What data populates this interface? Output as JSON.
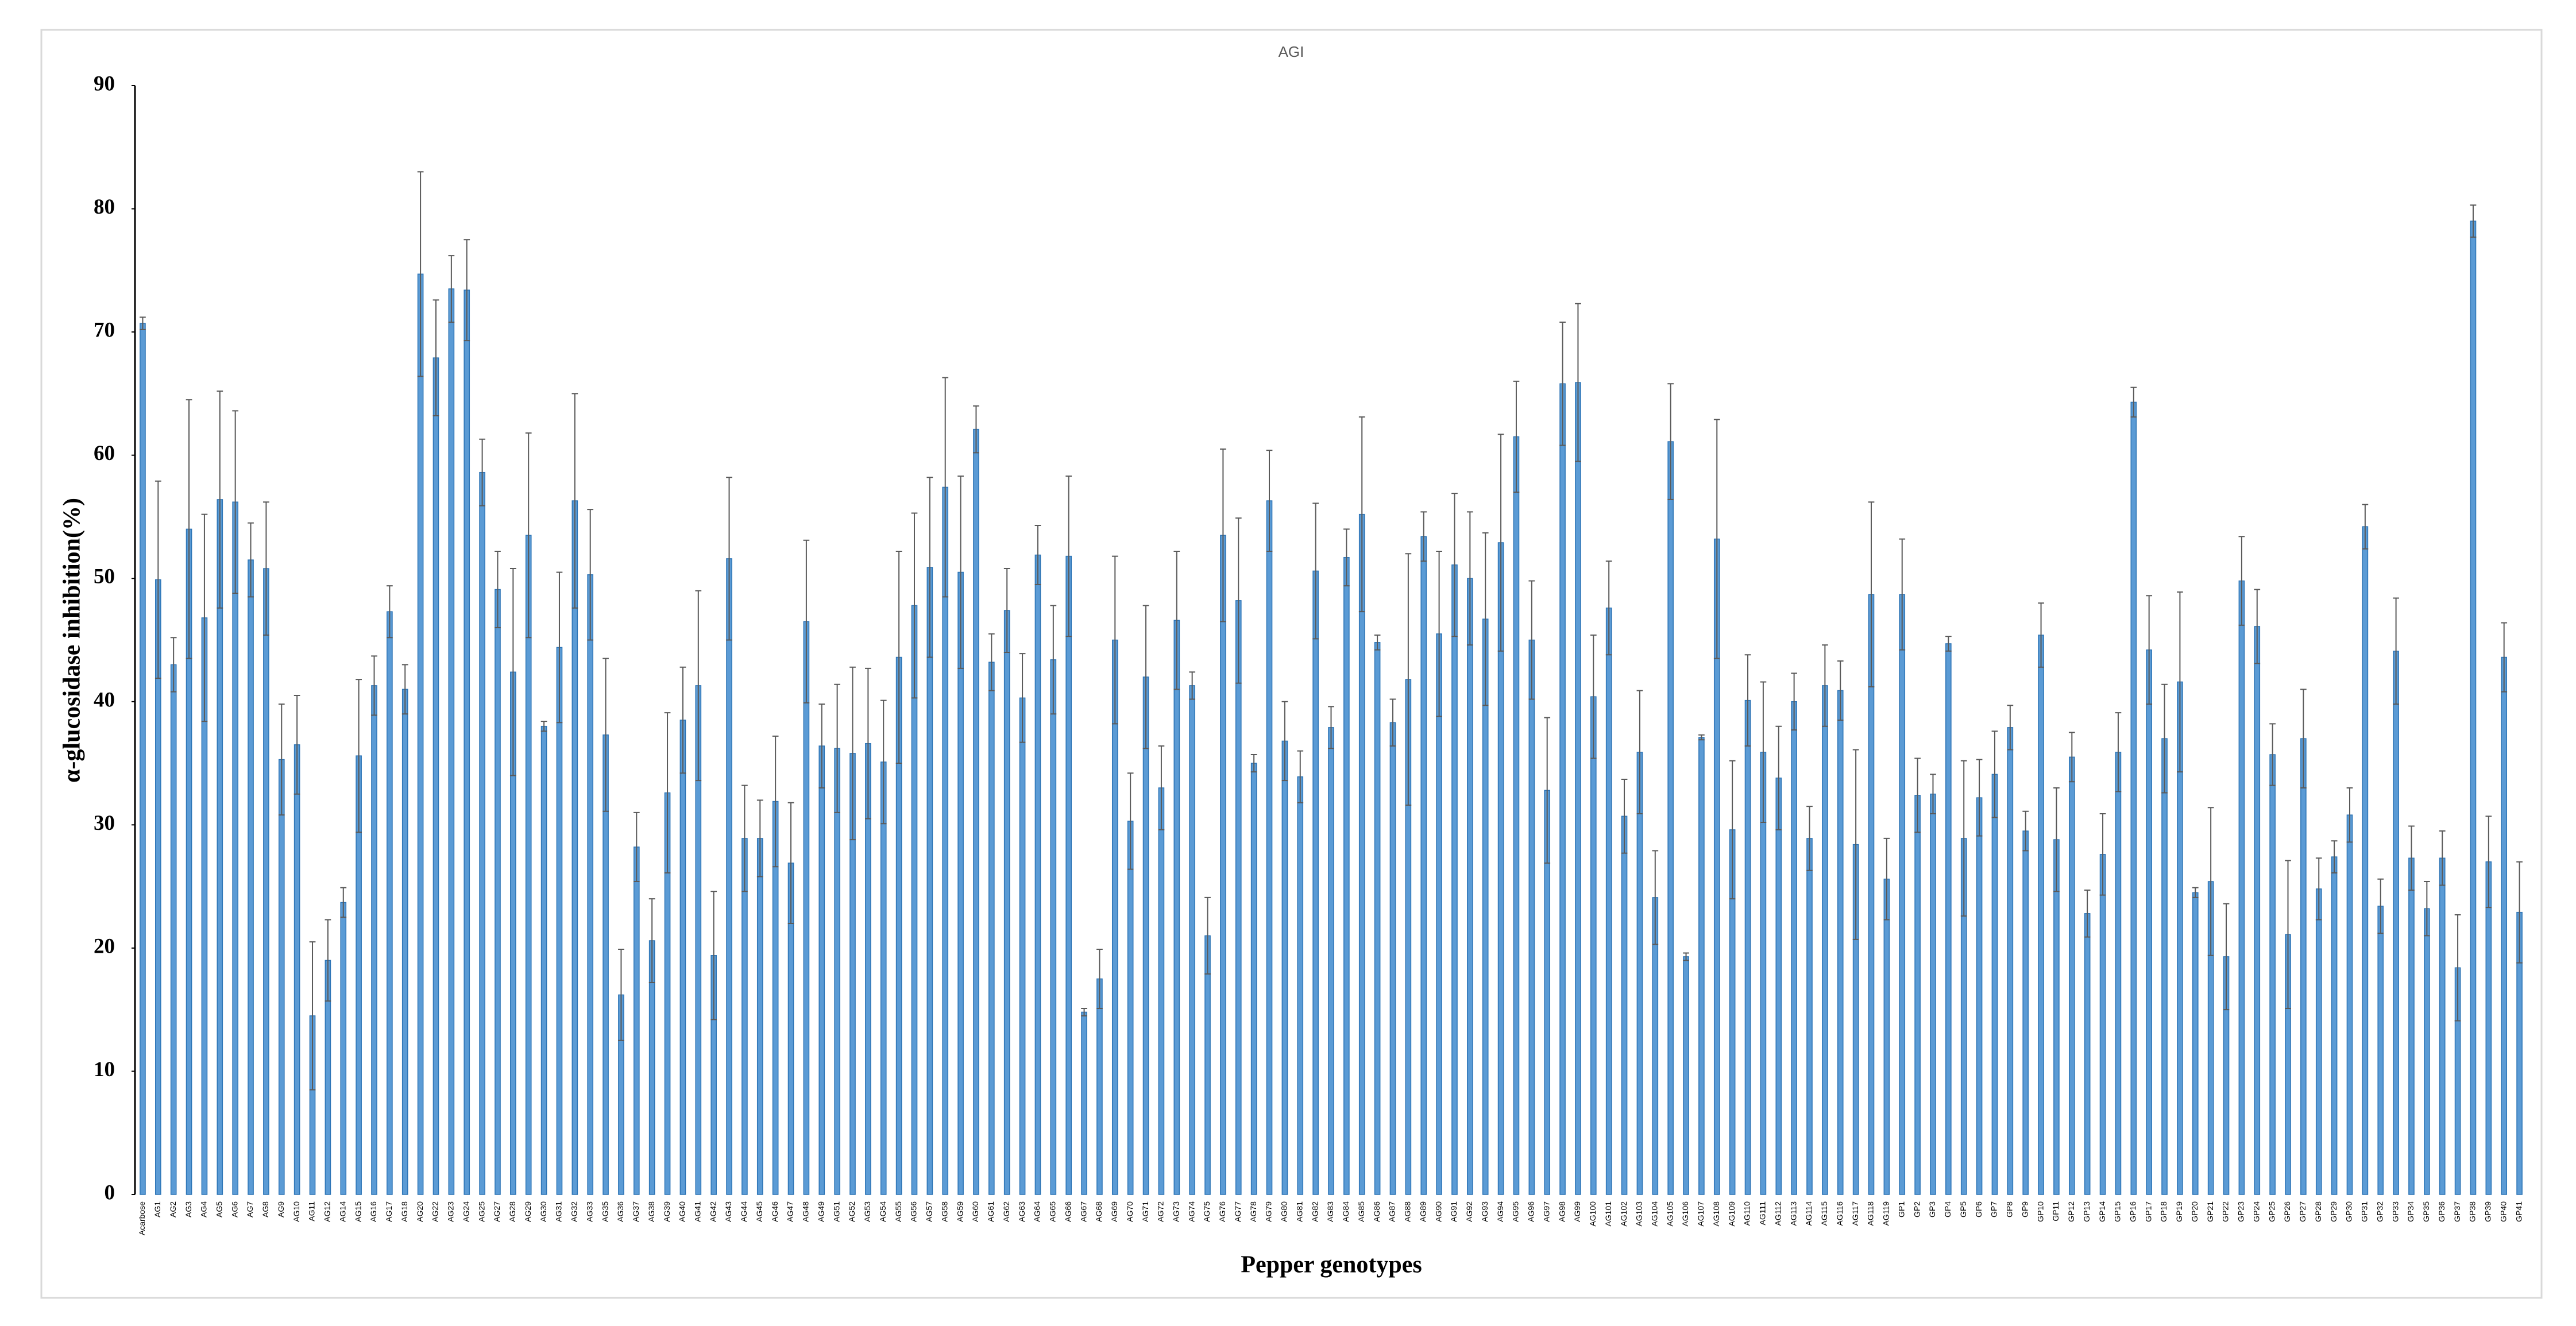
{
  "chart_data": {
    "type": "bar",
    "title": "AGI",
    "y_label": "α-glucosidase inhibition(%)",
    "x_label": "Pepper genotypes",
    "categories": [
      "Acarbose",
      "AG1",
      "AG2",
      "AG3",
      "AG4",
      "AG5",
      "AG6",
      "AG7",
      "AG8",
      "AG9",
      "AG10",
      "AG11",
      "AG12",
      "AG14",
      "AG15",
      "AG16",
      "AG17",
      "AG18",
      "AG20",
      "AG22",
      "AG23",
      "AG24",
      "AG25",
      "AG27",
      "AG28",
      "AG29",
      "AG30",
      "AG31",
      "AG32",
      "AG33",
      "AG35",
      "AG36",
      "AG37",
      "AG38",
      "AG39",
      "AG40",
      "AG41",
      "AG42",
      "AG43",
      "AG44",
      "AG45",
      "AG46",
      "AG47",
      "AG48",
      "AG49",
      "AG51",
      "AG52",
      "AG53",
      "AG54",
      "AG55",
      "AG56",
      "AG57",
      "AG58",
      "AG59",
      "AG60",
      "AG61",
      "AG62",
      "AG63",
      "AG64",
      "AG65",
      "AG66",
      "AG67",
      "AG68",
      "AG69",
      "AG70",
      "AG71",
      "AG72",
      "AG73",
      "AG74",
      "AG75",
      "AG76",
      "AG77",
      "AG78",
      "AG79",
      "AG80",
      "AG81",
      "AG82",
      "AG83",
      "AG84",
      "AG85",
      "AG86",
      "AG87",
      "AG88",
      "AG89",
      "AG90",
      "AG91",
      "AG92",
      "AG93",
      "AG94",
      "AG95",
      "AG96",
      "AG97",
      "AG98",
      "AG99",
      "AG100",
      "AG101",
      "AG102",
      "AG103",
      "AG104",
      "AG105",
      "AG106",
      "AG107",
      "AG108",
      "AG109",
      "AG110",
      "AG111",
      "AG112",
      "AG113",
      "AG114",
      "AG115",
      "AG116",
      "AG117",
      "AG118",
      "AG119",
      "GP1",
      "GP2",
      "GP3",
      "GP4",
      "GP5",
      "GP6",
      "GP7",
      "GP8",
      "GP9",
      "GP10",
      "GP11",
      "GP12",
      "GP13",
      "GP14",
      "GP15",
      "GP16",
      "GP17",
      "GP18",
      "GP19",
      "GP20",
      "GP21",
      "GP22",
      "GP23",
      "GP24",
      "GP25",
      "GP26",
      "GP27",
      "GP28",
      "GP29",
      "GP30",
      "GP31",
      "GP32",
      "GP33",
      "GP34",
      "GP35",
      "GP36",
      "GP37",
      "GP38",
      "GP39",
      "GP40",
      "GP41"
    ],
    "values": [
      70.7,
      49.9,
      43,
      54,
      46.8,
      56.4,
      56.2,
      51.5,
      50.8,
      35.3,
      36.5,
      14.5,
      19,
      23.7,
      35.6,
      41.3,
      47.3,
      41,
      74.7,
      67.9,
      73.5,
      73.4,
      58.6,
      49.1,
      42.4,
      53.5,
      38,
      44.4,
      56.3,
      50.3,
      37.3,
      16.2,
      28.2,
      20.6,
      32.6,
      38.5,
      41.3,
      19.4,
      51.6,
      28.9,
      28.9,
      31.9,
      26.9,
      46.5,
      36.4,
      36.2,
      35.8,
      36.6,
      35.1,
      43.6,
      47.8,
      50.9,
      57.4,
      50.5,
      62.1,
      43.2,
      47.4,
      40.3,
      51.9,
      43.4,
      51.8,
      14.8,
      17.5,
      45,
      30.3,
      42,
      33,
      46.6,
      41.3,
      21,
      53.5,
      48.2,
      35,
      56.3,
      36.8,
      33.9,
      50.6,
      37.9,
      51.7,
      55.2,
      44.8,
      38.3,
      41.8,
      53.4,
      45.5,
      51.1,
      50,
      46.7,
      52.9,
      61.5,
      45,
      32.8,
      65.8,
      65.9,
      40.4,
      47.6,
      30.7,
      35.9,
      24.1,
      61.1,
      19.3,
      37.1,
      53.2,
      29.6,
      40.1,
      35.9,
      33.8,
      40,
      28.9,
      41.3,
      40.9,
      28.4,
      48.7,
      25.6,
      48.7,
      32.4,
      32.5,
      44.7,
      28.9,
      32.2,
      34.1,
      37.9,
      29.5,
      45.4,
      28.8,
      35.5,
      22.8,
      27.6,
      35.9,
      64.3,
      44.2,
      37,
      41.6,
      24.5,
      25.4,
      19.3,
      49.8,
      46.1,
      35.7,
      21.1,
      37,
      24.8,
      27.4,
      30.8,
      54.2,
      23.4,
      44.1,
      27.3,
      23.2,
      27.3,
      18.4,
      79,
      27,
      43.6,
      22.9
    ],
    "errors": [
      0.5,
      8,
      2.2,
      10.5,
      8.4,
      8.8,
      7.4,
      3,
      5.4,
      4.5,
      4,
      6,
      3.3,
      1.2,
      6.2,
      2.4,
      2.1,
      2,
      8.3,
      4.7,
      2.7,
      4.1,
      2.7,
      3.1,
      8.4,
      8.3,
      0.4,
      6.1,
      8.7,
      5.3,
      6.2,
      3.7,
      2.8,
      3.4,
      6.5,
      4.3,
      7.7,
      5.2,
      6.6,
      4.3,
      3.1,
      5.3,
      4.9,
      6.6,
      3.4,
      5.2,
      7,
      6.1,
      5,
      8.6,
      7.5,
      7.3,
      8.9,
      7.8,
      1.9,
      2.3,
      3.4,
      3.6,
      2.4,
      4.4,
      6.5,
      0.3,
      2.4,
      6.8,
      3.9,
      5.8,
      3.4,
      5.6,
      1.1,
      3.1,
      7,
      6.7,
      0.7,
      4.1,
      3.2,
      2.1,
      5.5,
      1.7,
      2.3,
      7.9,
      0.6,
      1.9,
      10.2,
      2,
      6.7,
      5.8,
      5.4,
      7,
      8.8,
      4.5,
      4.8,
      5.9,
      5,
      6.4,
      5,
      3.8,
      3,
      5,
      3.8,
      4.7,
      0.3,
      0.2,
      9.7,
      5.6,
      3.7,
      5.7,
      4.2,
      2.3,
      2.6,
      3.3,
      2.4,
      7.7,
      7.5,
      3.3,
      4.5,
      3,
      1.6,
      0.6,
      6.3,
      3.1,
      3.5,
      1.8,
      1.6,
      2.6,
      4.2,
      2,
      1.9,
      3.3,
      3.2,
      1.2,
      4.4,
      4.4,
      7.3,
      0.4,
      6,
      4.3,
      3.6,
      3,
      2.5,
      6,
      4,
      2.5,
      1.3,
      2.2,
      1.8,
      2.2,
      4.3,
      2.6,
      2.2,
      2.2,
      4.3,
      1.3,
      3.7,
      2.8,
      4.1
    ],
    "color": "#5b9bd5",
    "ylim": [
      0,
      90
    ],
    "yticks": [
      0,
      10,
      20,
      30,
      40,
      50,
      60,
      70,
      80,
      90
    ],
    "grid": false
  }
}
